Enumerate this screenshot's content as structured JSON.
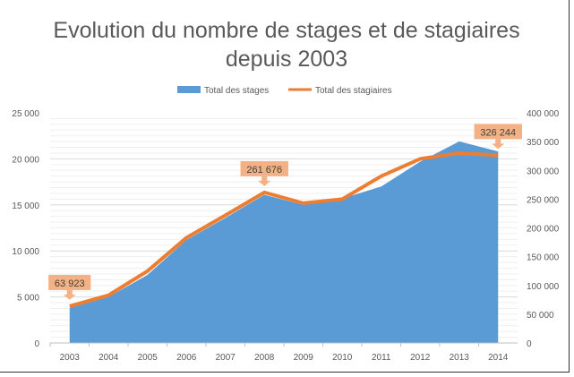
{
  "chart_data": {
    "type": "area+line",
    "title_line1": "Evolution du nombre de stages et de stagiaires",
    "title_line2": "depuis 2003",
    "categories": [
      "2003",
      "2004",
      "2005",
      "2006",
      "2007",
      "2008",
      "2009",
      "2010",
      "2011",
      "2012",
      "2013",
      "2014"
    ],
    "series": [
      {
        "name": "Total des stages",
        "type": "area",
        "axis": "left",
        "color": "#5B9BD5",
        "values": [
          3800,
          5000,
          7400,
          11200,
          13600,
          16100,
          15000,
          15700,
          17000,
          19700,
          21900,
          20800
        ]
      },
      {
        "name": "Total des stagiaires",
        "type": "line",
        "axis": "right",
        "color": "#ED7D31",
        "values": [
          63923,
          83000,
          125000,
          183000,
          222000,
          261676,
          243000,
          250000,
          290000,
          320000,
          330000,
          326244
        ]
      }
    ],
    "left_axis": {
      "ylim": [
        0,
        25000
      ],
      "ticks": [
        "0",
        "5 000",
        "10 000",
        "15 000",
        "20 000",
        "25 000"
      ]
    },
    "right_axis": {
      "ylim": [
        0,
        400000
      ],
      "ticks": [
        "0",
        "50 000",
        "100 000",
        "150 000",
        "200 000",
        "250 000",
        "300 000",
        "350 000",
        "400 000"
      ]
    },
    "annotations": [
      {
        "category": "2003",
        "label": "63 923"
      },
      {
        "category": "2008",
        "label": "261 676"
      },
      {
        "category": "2014",
        "label": "326 244"
      }
    ],
    "legend_position": "top",
    "grid": true
  }
}
